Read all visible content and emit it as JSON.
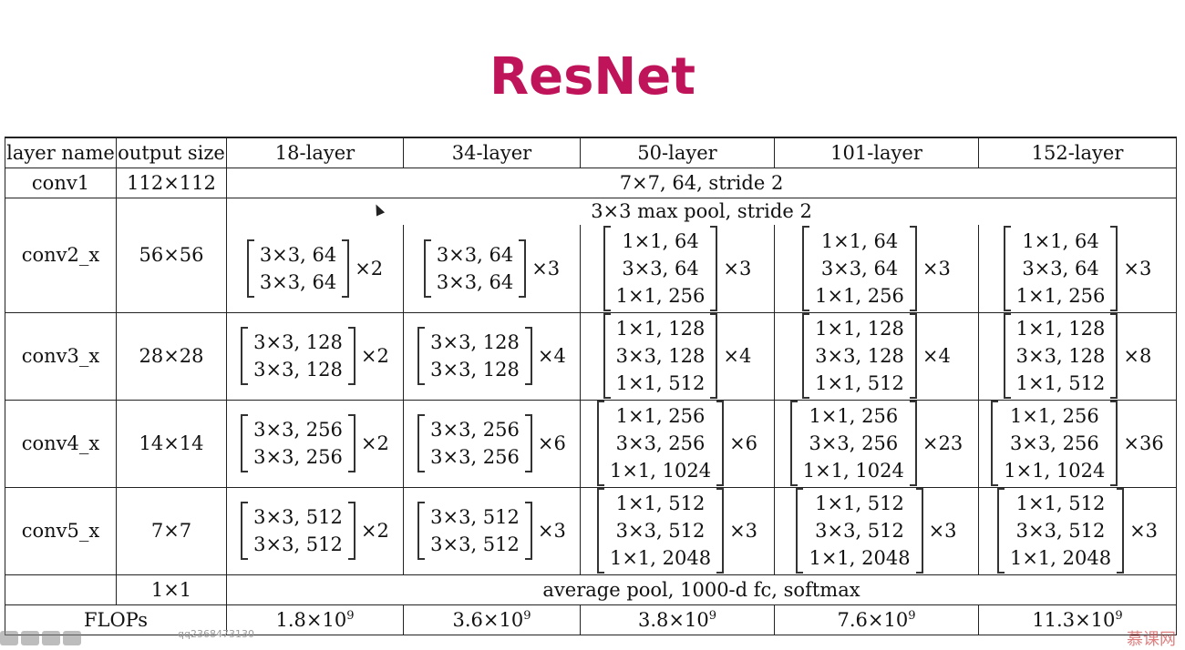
{
  "slide": {
    "title": "ResNet"
  },
  "header": {
    "layer_name": "layer name",
    "output_size": "output size",
    "cols": [
      "18-layer",
      "34-layer",
      "50-layer",
      "101-layer",
      "152-layer"
    ]
  },
  "rows": {
    "conv1": {
      "name": "conv1",
      "size": "112×112",
      "spec": "7×7, 64, stride 2"
    },
    "conv2": {
      "name": "conv2_x",
      "size": "56×56",
      "pool": "3×3 max pool, stride 2",
      "cells": [
        {
          "lines": [
            "3×3, 64",
            "3×3, 64"
          ],
          "mult": "×2"
        },
        {
          "lines": [
            "3×3, 64",
            "3×3, 64"
          ],
          "mult": "×3"
        },
        {
          "lines": [
            "1×1, 64",
            "3×3, 64",
            "1×1, 256"
          ],
          "mult": "×3"
        },
        {
          "lines": [
            "1×1, 64",
            "3×3, 64",
            "1×1, 256"
          ],
          "mult": "×3"
        },
        {
          "lines": [
            "1×1, 64",
            "3×3, 64",
            "1×1, 256"
          ],
          "mult": "×3"
        }
      ]
    },
    "conv3": {
      "name": "conv3_x",
      "size": "28×28",
      "cells": [
        {
          "lines": [
            "3×3, 128",
            "3×3, 128"
          ],
          "mult": "×2"
        },
        {
          "lines": [
            "3×3, 128",
            "3×3, 128"
          ],
          "mult": "×4"
        },
        {
          "lines": [
            "1×1, 128",
            "3×3, 128",
            "1×1, 512"
          ],
          "mult": "×4"
        },
        {
          "lines": [
            "1×1, 128",
            "3×3, 128",
            "1×1, 512"
          ],
          "mult": "×4"
        },
        {
          "lines": [
            "1×1, 128",
            "3×3, 128",
            "1×1, 512"
          ],
          "mult": "×8"
        }
      ]
    },
    "conv4": {
      "name": "conv4_x",
      "size": "14×14",
      "cells": [
        {
          "lines": [
            "3×3, 256",
            "3×3, 256"
          ],
          "mult": "×2"
        },
        {
          "lines": [
            "3×3, 256",
            "3×3, 256"
          ],
          "mult": "×6"
        },
        {
          "lines": [
            "1×1, 256",
            "3×3, 256",
            "1×1, 1024"
          ],
          "mult": "×6"
        },
        {
          "lines": [
            "1×1, 256",
            "3×3, 256",
            "1×1, 1024"
          ],
          "mult": "×23"
        },
        {
          "lines": [
            "1×1, 256",
            "3×3, 256",
            "1×1, 1024"
          ],
          "mult": "×36"
        }
      ]
    },
    "conv5": {
      "name": "conv5_x",
      "size": "7×7",
      "cells": [
        {
          "lines": [
            "3×3, 512",
            "3×3, 512"
          ],
          "mult": "×2"
        },
        {
          "lines": [
            "3×3, 512",
            "3×3, 512"
          ],
          "mult": "×3"
        },
        {
          "lines": [
            "1×1, 512",
            "3×3, 512",
            "1×1, 2048"
          ],
          "mult": "×3"
        },
        {
          "lines": [
            "1×1, 512",
            "3×3, 512",
            "1×1, 2048"
          ],
          "mult": "×3"
        },
        {
          "lines": [
            "1×1, 512",
            "3×3, 512",
            "1×1, 2048"
          ],
          "mult": "×3"
        }
      ]
    },
    "pool": {
      "size": "1×1",
      "spec": "average pool, 1000-d fc, softmax"
    },
    "flops": {
      "name": "FLOPs",
      "values": [
        {
          "base": "1.8×10",
          "exp": "9"
        },
        {
          "base": "3.6×10",
          "exp": "9"
        },
        {
          "base": "3.8×10",
          "exp": "9"
        },
        {
          "base": "7.6×10",
          "exp": "9"
        },
        {
          "base": "11.3×10",
          "exp": "9"
        }
      ]
    }
  },
  "footer": {
    "watermark": "qq2368473130",
    "logo": "慕课网"
  }
}
